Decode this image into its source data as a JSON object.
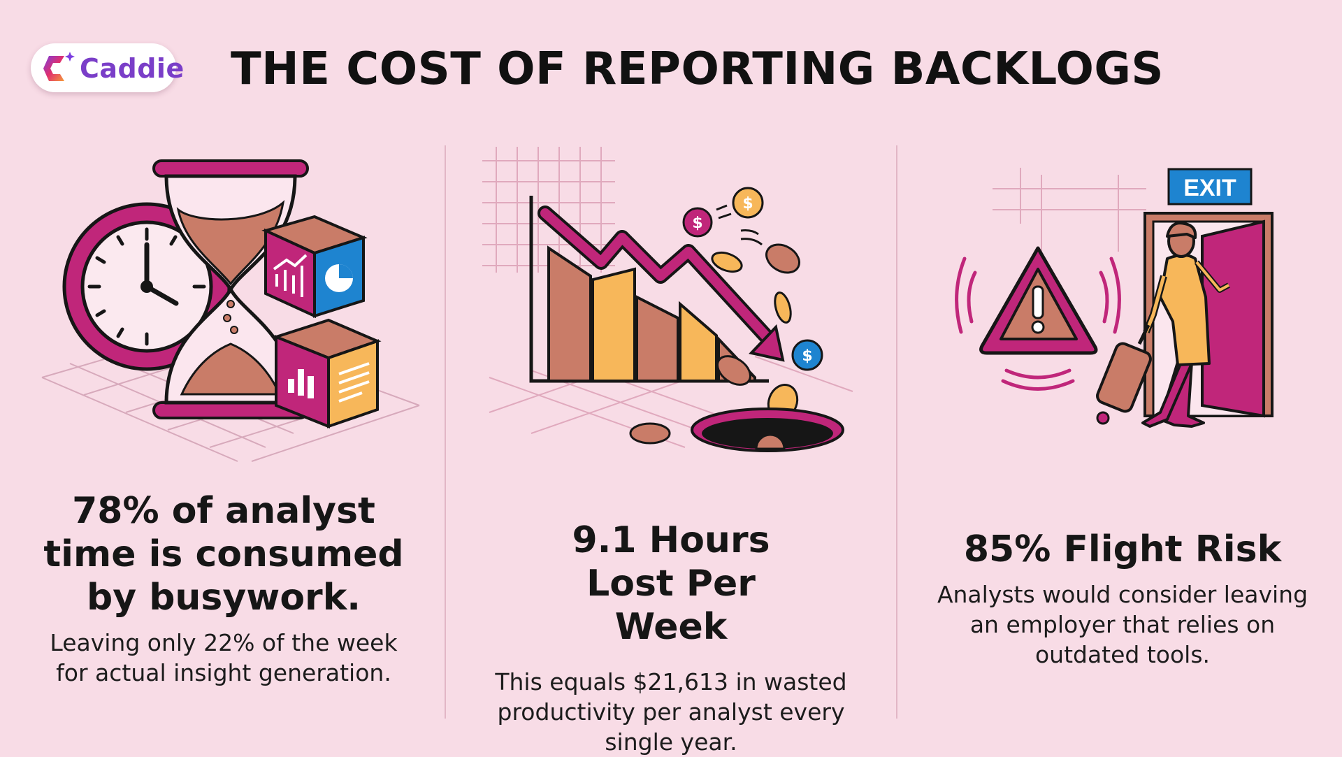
{
  "brand": {
    "name": "Caddie"
  },
  "page": {
    "title": "THE COST OF REPORTING BACKLOGS"
  },
  "cards": [
    {
      "headline": "78% of analyst time is consumed by busywork.",
      "detail": "Leaving only 22% of the week for actual insight generation."
    },
    {
      "headline": "9.1 Hours Lost Per Week",
      "detail": "This equals $21,613 in wasted productivity per analyst every single year."
    },
    {
      "headline": "85% Flight Risk",
      "detail": "Analysts would consider leaving an employer that relies on outdated tools."
    }
  ],
  "illustrations": {
    "exit_sign": "EXIT",
    "coin_symbol": "$"
  },
  "colors": {
    "background": "#f8dce6",
    "magenta": "#c0267a",
    "peach": "#c97c68",
    "orange": "#f7b75a",
    "blue": "#1e84d0",
    "dark": "#161616"
  }
}
